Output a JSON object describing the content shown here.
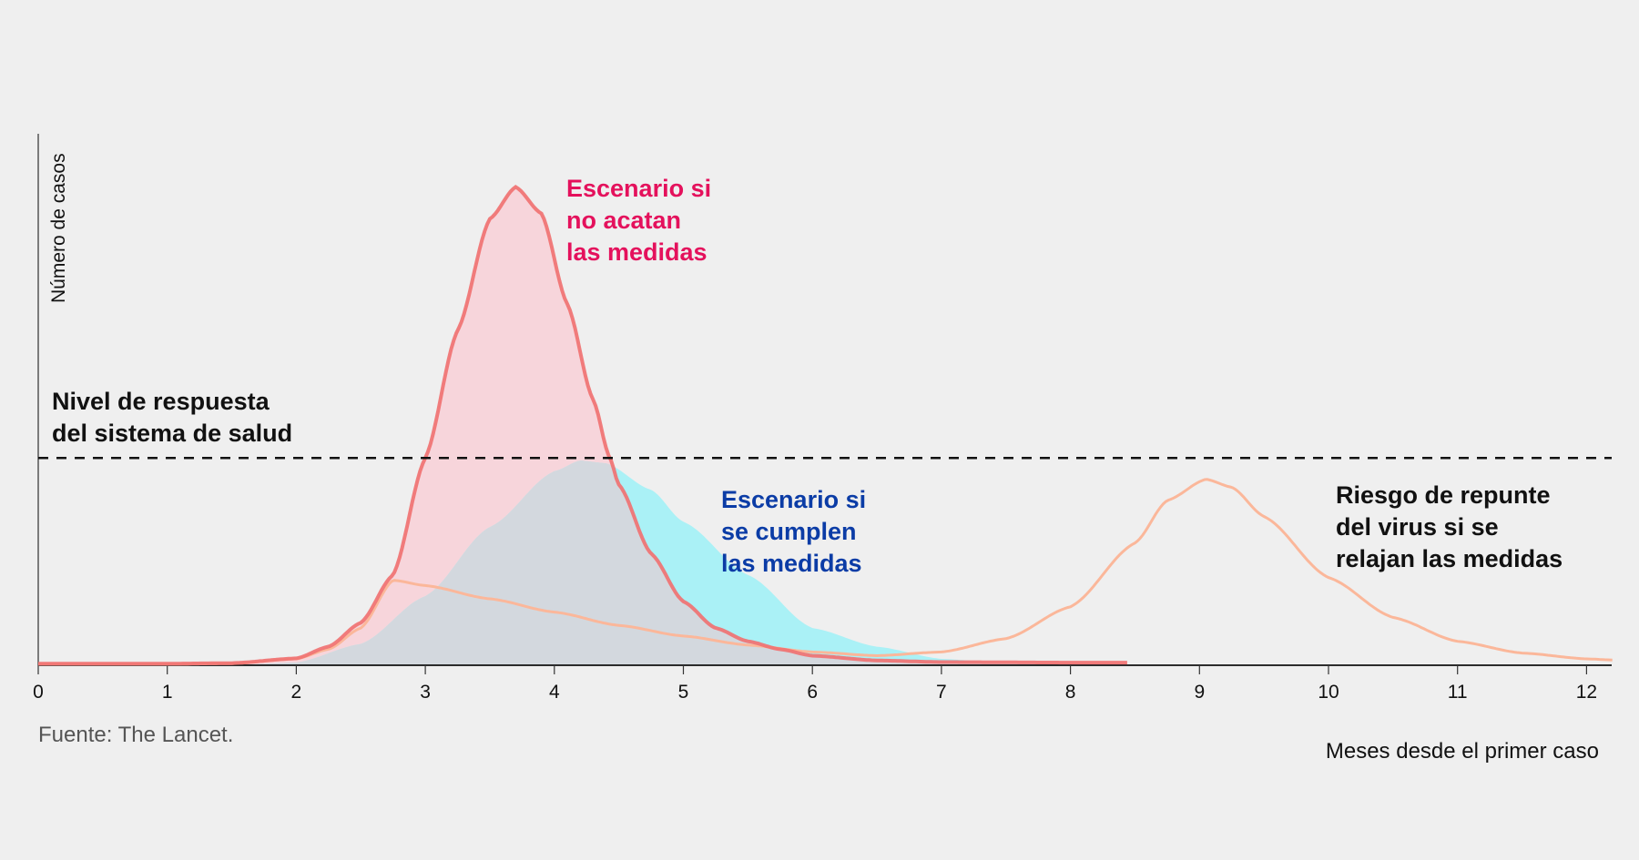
{
  "chart_data": {
    "type": "area",
    "title": "",
    "xlabel": "Meses desde el primer caso",
    "ylabel": "Número de casos",
    "xlim": [
      0,
      12.2
    ],
    "ylim": [
      0,
      100
    ],
    "x_ticks": [
      "0",
      "1",
      "2",
      "3",
      "4",
      "5",
      "6",
      "7",
      "8",
      "9",
      "10",
      "11",
      "12"
    ],
    "grid": false,
    "source": "Fuente: The Lancet.",
    "capacity": {
      "value": 39,
      "label": [
        "Nivel de respuesta",
        "del sistema de salud"
      ]
    },
    "series": [
      {
        "key": "sin_medidas",
        "label": [
          "Escenario si",
          "no acatan",
          "las medidas"
        ],
        "line_color": "#f07272",
        "fill_color": "#f7d5db",
        "label_color": "#e4115c",
        "points": [
          [
            0,
            0.3
          ],
          [
            1,
            0.3
          ],
          [
            1.5,
            0.4
          ],
          [
            2,
            1.3
          ],
          [
            2.25,
            3.5
          ],
          [
            2.5,
            8
          ],
          [
            2.75,
            17
          ],
          [
            3,
            39
          ],
          [
            3.25,
            63
          ],
          [
            3.5,
            84
          ],
          [
            3.7,
            90
          ],
          [
            3.9,
            85
          ],
          [
            4.1,
            68
          ],
          [
            4.3,
            50
          ],
          [
            4.43,
            39
          ],
          [
            4.5,
            34
          ],
          [
            4.75,
            21
          ],
          [
            5,
            12
          ],
          [
            5.25,
            7
          ],
          [
            5.5,
            4.5
          ],
          [
            5.75,
            3
          ],
          [
            6,
            1.8
          ],
          [
            6.5,
            0.9
          ],
          [
            7,
            0.6
          ],
          [
            8,
            0.5
          ],
          [
            8.45,
            0.5
          ]
        ]
      },
      {
        "key": "con_medidas",
        "label": [
          "Escenario si",
          "se cumplen",
          "las medidas"
        ],
        "fill_color": "#aaf1f6",
        "overlap_color": "#d3d8de",
        "label_color": "#0b3ca6",
        "points": [
          [
            0,
            0
          ],
          [
            1.5,
            0
          ],
          [
            2,
            0.5
          ],
          [
            2.5,
            4
          ],
          [
            3,
            13
          ],
          [
            3.5,
            26
          ],
          [
            4,
            36.5
          ],
          [
            4.2,
            38.5
          ],
          [
            4.4,
            38
          ],
          [
            4.75,
            33
          ],
          [
            5,
            27
          ],
          [
            5.5,
            17
          ],
          [
            6,
            7
          ],
          [
            6.5,
            3.5
          ],
          [
            7,
            1.2
          ],
          [
            7.5,
            0.4
          ],
          [
            8,
            0
          ]
        ]
      },
      {
        "key": "repunte",
        "label": [
          "Riesgo de repunte",
          "del virus si se",
          "relajan las medidas"
        ],
        "line_color": "#fbb79a",
        "label_color": "#111111",
        "points": [
          [
            0,
            0.2
          ],
          [
            1,
            0.2
          ],
          [
            1.5,
            0.3
          ],
          [
            2,
            1.2
          ],
          [
            2.25,
            3
          ],
          [
            2.5,
            7
          ],
          [
            2.75,
            16
          ],
          [
            3,
            15
          ],
          [
            3.5,
            12.5
          ],
          [
            4,
            10
          ],
          [
            4.5,
            7.5
          ],
          [
            5,
            5.5
          ],
          [
            5.5,
            3.8
          ],
          [
            6,
            2.5
          ],
          [
            6.5,
            1.8
          ],
          [
            7,
            2.5
          ],
          [
            7.5,
            5
          ],
          [
            8,
            11
          ],
          [
            8.5,
            23
          ],
          [
            8.75,
            31
          ],
          [
            9.05,
            35
          ],
          [
            9.25,
            33.5
          ],
          [
            9.5,
            28
          ],
          [
            10,
            16.5
          ],
          [
            10.5,
            9
          ],
          [
            11,
            4.5
          ],
          [
            11.5,
            2.3
          ],
          [
            12,
            1.2
          ],
          [
            12.2,
            1
          ]
        ]
      }
    ]
  }
}
